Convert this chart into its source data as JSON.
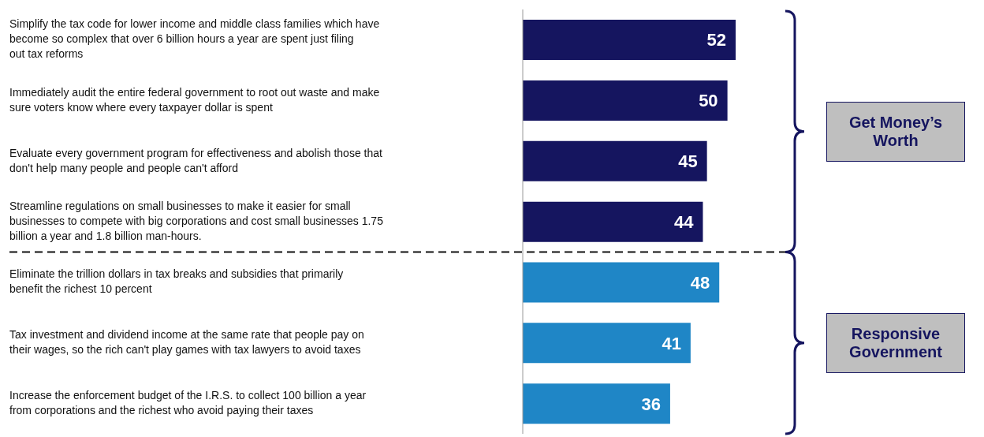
{
  "chart_data": {
    "type": "bar",
    "orientation": "horizontal",
    "data_labels": true,
    "categories": [
      "Simplify the tax code for lower income and middle class families which have become so complex that over 6 billion hours a year are spent just filing out tax reforms",
      "Immediately audit the entire federal government to root out waste and make sure voters know where every taxpayer dollar is spent",
      "Evaluate every government program for effectiveness and abolish those that don't help many people and people can't afford",
      "Streamline regulations on small businesses to make it easier for small businesses to compete with big corporations and cost small businesses 1.75 billion a year and 1.8 billion man-hours.",
      "Eliminate the trillion dollars in tax breaks and subsidies that primarily benefit the richest 10 percent",
      "Tax investment and dividend income at the same rate that people pay on their wages, so the rich can't play games with tax lawyers to avoid taxes",
      "Increase the enforcement budget of the I.R.S. to collect 100 billion a year from corporations and the richest who avoid paying their taxes"
    ],
    "values": [
      52,
      50,
      45,
      44,
      48,
      41,
      36
    ],
    "colors": [
      "#15155f",
      "#15155f",
      "#15155f",
      "#15155f",
      "#1f86c6",
      "#1f86c6",
      "#1f86c6"
    ],
    "annotations": [
      "Get Money’s Worth",
      "Responsive Government"
    ]
  }
}
